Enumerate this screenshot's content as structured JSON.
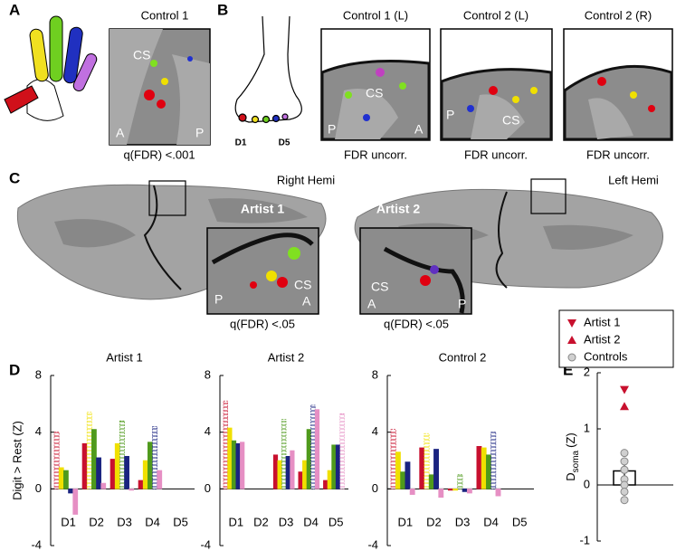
{
  "panel_labels": [
    "A",
    "B",
    "C",
    "D",
    "E"
  ],
  "panel_a": {
    "title": "Control 1",
    "labels": [
      "CS",
      "A",
      "P"
    ],
    "caption": "q(FDR) <.001"
  },
  "panel_b": {
    "foot_labels": [
      "D1",
      "D5"
    ],
    "views": [
      {
        "title": "Control 1 (L)",
        "labels": [
          "CS",
          "P",
          "A"
        ],
        "caption": "FDR uncorr."
      },
      {
        "title": "Control 2 (L)",
        "labels": [
          "P",
          "CS"
        ],
        "caption": "FDR uncorr."
      },
      {
        "title": "Control 2 (R)",
        "caption": "FDR uncorr."
      }
    ]
  },
  "panel_c": {
    "hemis": [
      {
        "title": "Right Hemi",
        "subject": "Artist 1",
        "labels": [
          "P",
          "CS",
          "A"
        ],
        "caption": "q(FDR) <.05"
      },
      {
        "title": "Left Hemi",
        "subject": "Artist 2",
        "labels": [
          "CS",
          "A",
          "P"
        ],
        "caption": "q(FDR) <.05"
      }
    ]
  },
  "chart_data": [
    {
      "type": "bar",
      "title": "Artist 1",
      "ylabel": "Digit > Rest (Z)",
      "categories": [
        "D1",
        "D2",
        "D3",
        "D4",
        "D5"
      ],
      "ylim": [
        -4,
        8
      ],
      "yticks": [
        8,
        4,
        0,
        -4
      ],
      "series": [
        {
          "color": "#c8102e",
          "values": [
            4.0,
            3.2,
            2.1,
            0.6,
            0
          ]
        },
        {
          "color": "#f0e000",
          "values": [
            1.5,
            5.4,
            3.2,
            2.0,
            0
          ]
        },
        {
          "color": "#4f9a1c",
          "values": [
            1.3,
            4.2,
            4.8,
            3.3,
            0
          ]
        },
        {
          "color": "#1a2380",
          "values": [
            -0.3,
            2.2,
            2.3,
            4.4,
            0
          ]
        },
        {
          "color": "#e68fc4",
          "values": [
            -1.8,
            0.4,
            -0.1,
            1.3,
            0
          ]
        }
      ]
    },
    {
      "type": "bar",
      "title": "Artist 2",
      "categories": [
        "D1",
        "D2",
        "D3",
        "D4",
        "D5"
      ],
      "ylim": [
        -4,
        8
      ],
      "yticks": [
        8,
        4,
        0,
        -4
      ],
      "series": [
        {
          "color": "#c8102e",
          "values": [
            6.2,
            0,
            2.4,
            1.2,
            0.6
          ]
        },
        {
          "color": "#f0e000",
          "values": [
            4.3,
            0,
            2.0,
            2.0,
            1.3
          ]
        },
        {
          "color": "#4f9a1c",
          "values": [
            3.4,
            0,
            4.9,
            4.2,
            3.1
          ]
        },
        {
          "color": "#1a2380",
          "values": [
            3.2,
            0,
            2.3,
            5.9,
            3.1
          ]
        },
        {
          "color": "#e68fc4",
          "values": [
            3.3,
            0,
            2.7,
            5.6,
            5.3
          ]
        }
      ]
    },
    {
      "type": "bar",
      "title": "Control 2",
      "categories": [
        "D1",
        "D2",
        "D3",
        "D4",
        "D5"
      ],
      "ylim": [
        -4,
        8
      ],
      "yticks": [
        8,
        4,
        0,
        -4
      ],
      "series": [
        {
          "color": "#c8102e",
          "values": [
            4.2,
            2.9,
            -0.1,
            3.0,
            0
          ]
        },
        {
          "color": "#f0e000",
          "values": [
            2.6,
            3.9,
            -0.1,
            2.9,
            0
          ]
        },
        {
          "color": "#4f9a1c",
          "values": [
            1.2,
            1.0,
            1.0,
            2.4,
            0
          ]
        },
        {
          "color": "#1a2380",
          "values": [
            1.9,
            2.8,
            -0.2,
            4.0,
            0
          ]
        },
        {
          "color": "#e68fc4",
          "values": [
            -0.4,
            -0.6,
            -0.3,
            -0.5,
            0
          ]
        }
      ]
    },
    {
      "type": "scatter",
      "ylabel": "D",
      "ylabel_sub": "soma",
      "ylabel_unit": "(Z)",
      "ylim": [
        -1,
        2
      ],
      "yticks": [
        2,
        1,
        0,
        -1
      ],
      "bar": {
        "value": 0.25,
        "error": 0.13
      },
      "series": [
        {
          "name": "Artist 1",
          "color": "#c8102e",
          "marker": "triangle-down",
          "values": [
            1.7
          ]
        },
        {
          "name": "Artist 2",
          "color": "#c8102e",
          "marker": "triangle-up",
          "values": [
            1.4
          ]
        },
        {
          "name": "Controls",
          "color": "#d0d0d0",
          "marker": "circle",
          "values": [
            0.57,
            0.42,
            0.27,
            0.27,
            0.1,
            0.0,
            -0.12,
            -0.27
          ]
        }
      ]
    }
  ]
}
